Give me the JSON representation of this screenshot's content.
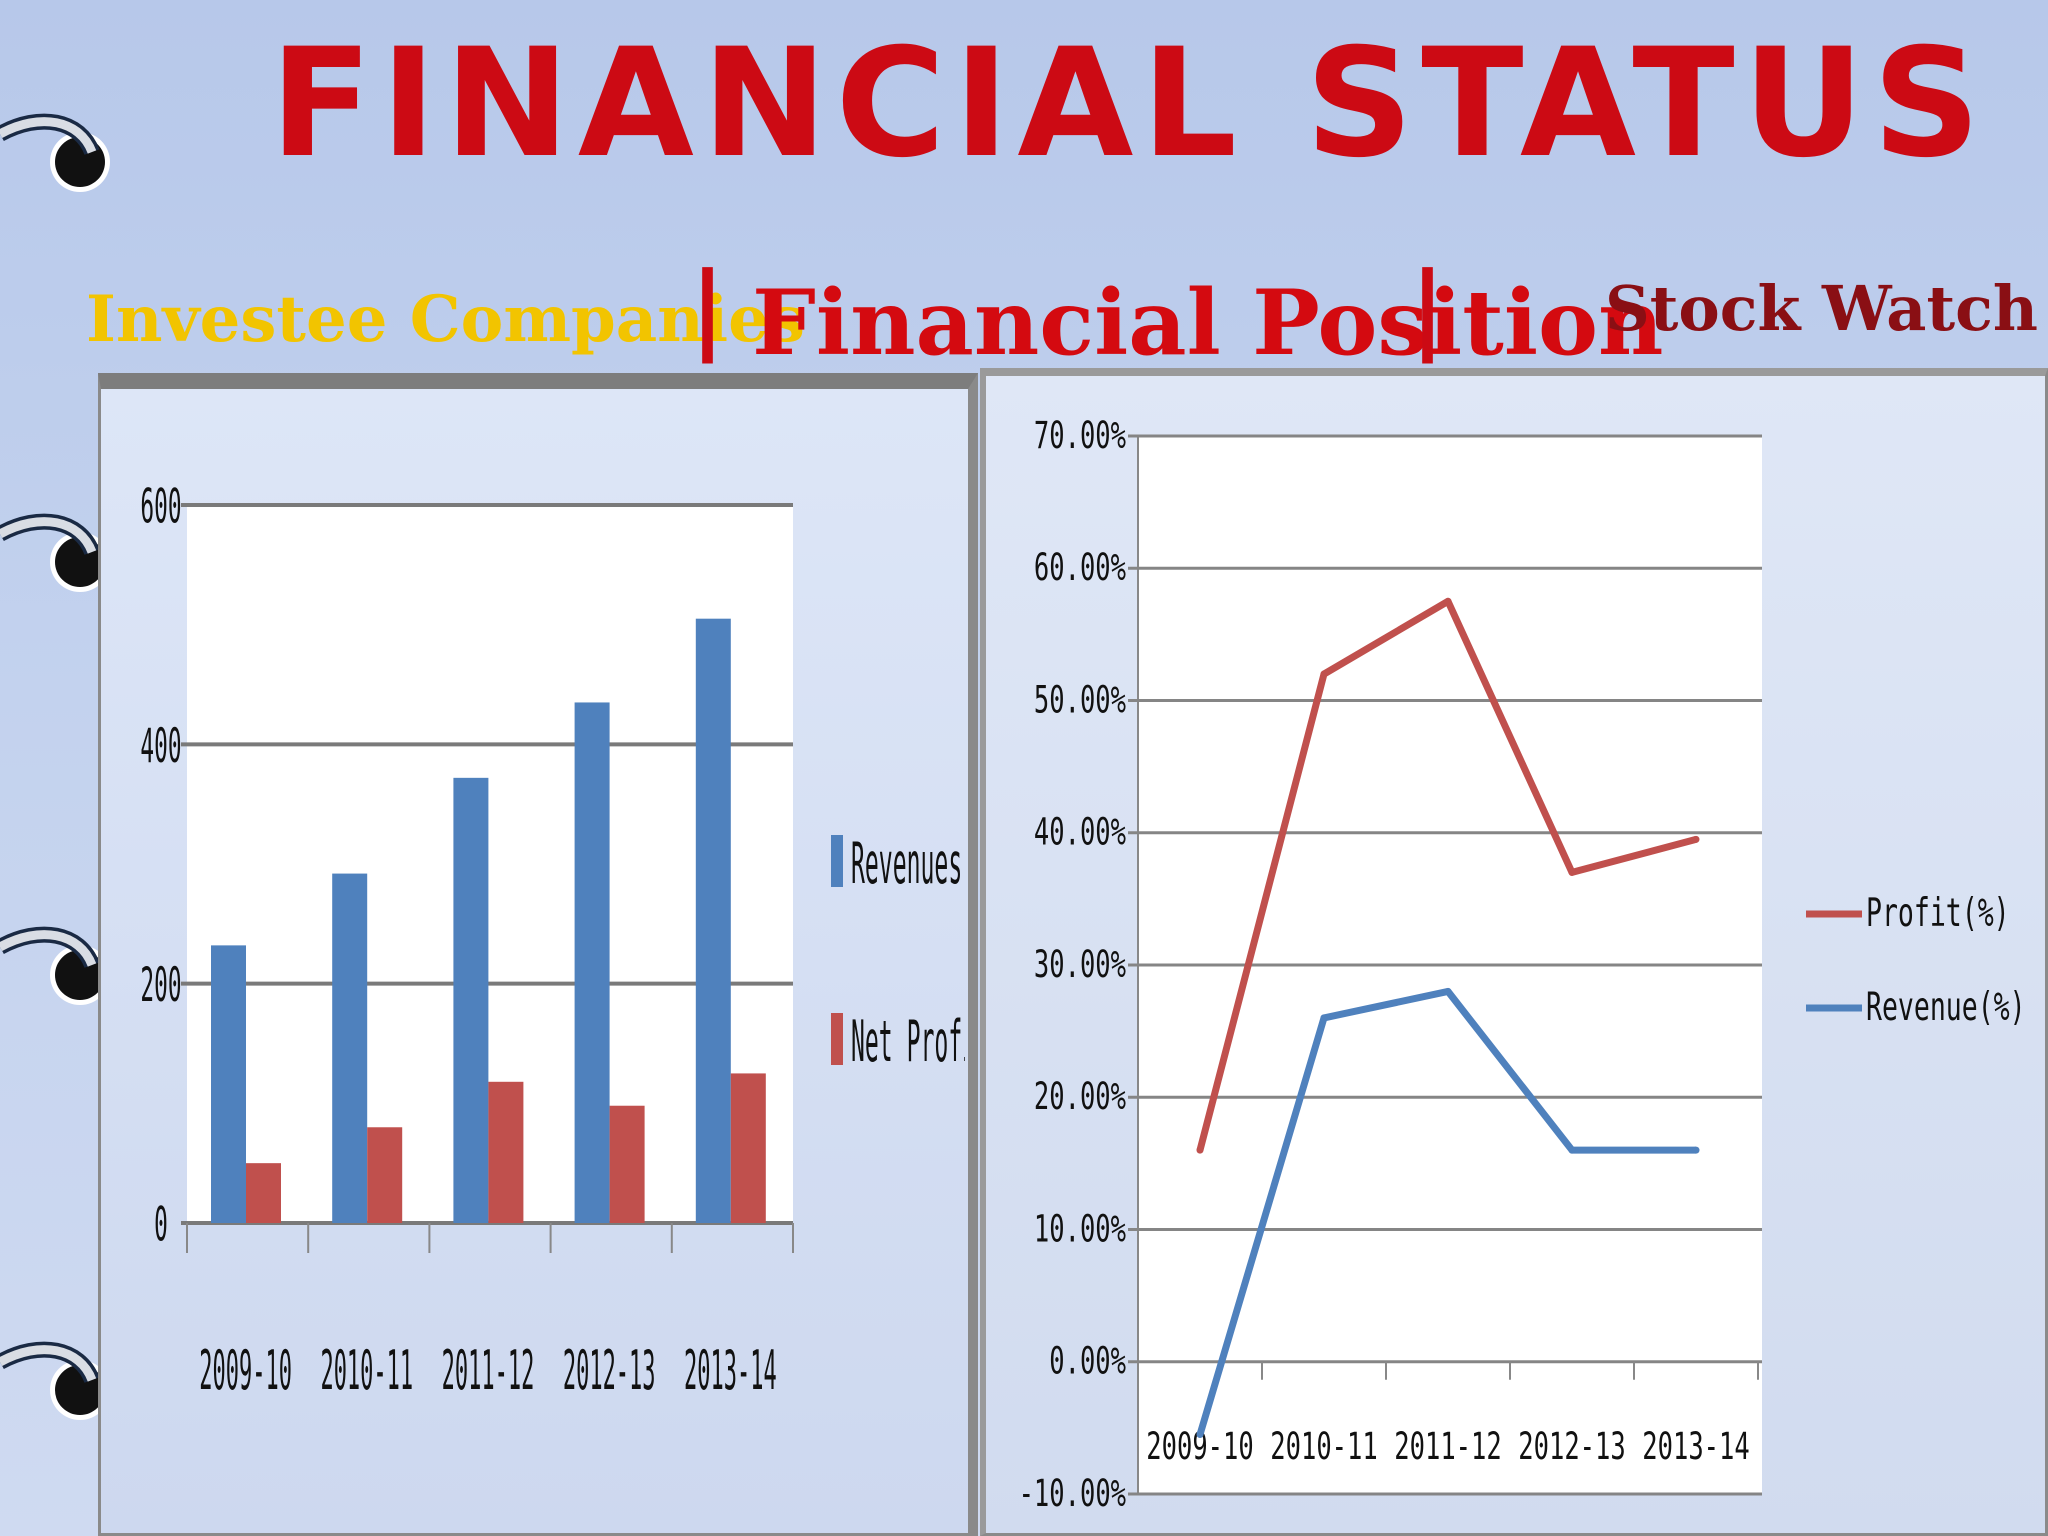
{
  "header": {
    "title": "FINANCIAL STATUS",
    "nav_investee": "Investee Companies",
    "nav_separator": "|",
    "nav_position": "Financial Position",
    "nav_stock": "Stock Watch"
  },
  "colors": {
    "title": "#cc0a14",
    "revenues": "#4f81bd",
    "net_profit": "#c0504d",
    "investee": "#f2c400",
    "stock_watch": "#8a0f14"
  },
  "chart_data": [
    {
      "type": "bar",
      "categories": [
        "2009-10",
        "2010-11",
        "2011-12",
        "2012-13",
        "2013-14"
      ],
      "series": [
        {
          "name": "Revenues",
          "values": [
            232,
            292,
            372,
            435,
            505
          ]
        },
        {
          "name": "Net Profit",
          "values": [
            50,
            80,
            118,
            98,
            125
          ]
        }
      ],
      "yticks": [
        "0",
        "200",
        "400",
        "600"
      ],
      "ylim": [
        0,
        600
      ],
      "grid": true,
      "legend": "right"
    },
    {
      "type": "line",
      "categories": [
        "2009-10",
        "2010-11",
        "2011-12",
        "2012-13",
        "2013-14"
      ],
      "series": [
        {
          "name": "Profit(%)",
          "values": [
            16.0,
            52.0,
            57.5,
            37.0,
            39.5
          ]
        },
        {
          "name": "Revenue(%)",
          "values": [
            -5.5,
            26.0,
            28.0,
            16.0,
            16.0
          ]
        }
      ],
      "yticks": [
        "-10.00%",
        "0.00%",
        "10.00%",
        "20.00%",
        "30.00%",
        "40.00%",
        "50.00%",
        "60.00%",
        "70.00%"
      ],
      "ylim": [
        -10,
        70
      ],
      "grid": true,
      "legend": "right"
    }
  ]
}
